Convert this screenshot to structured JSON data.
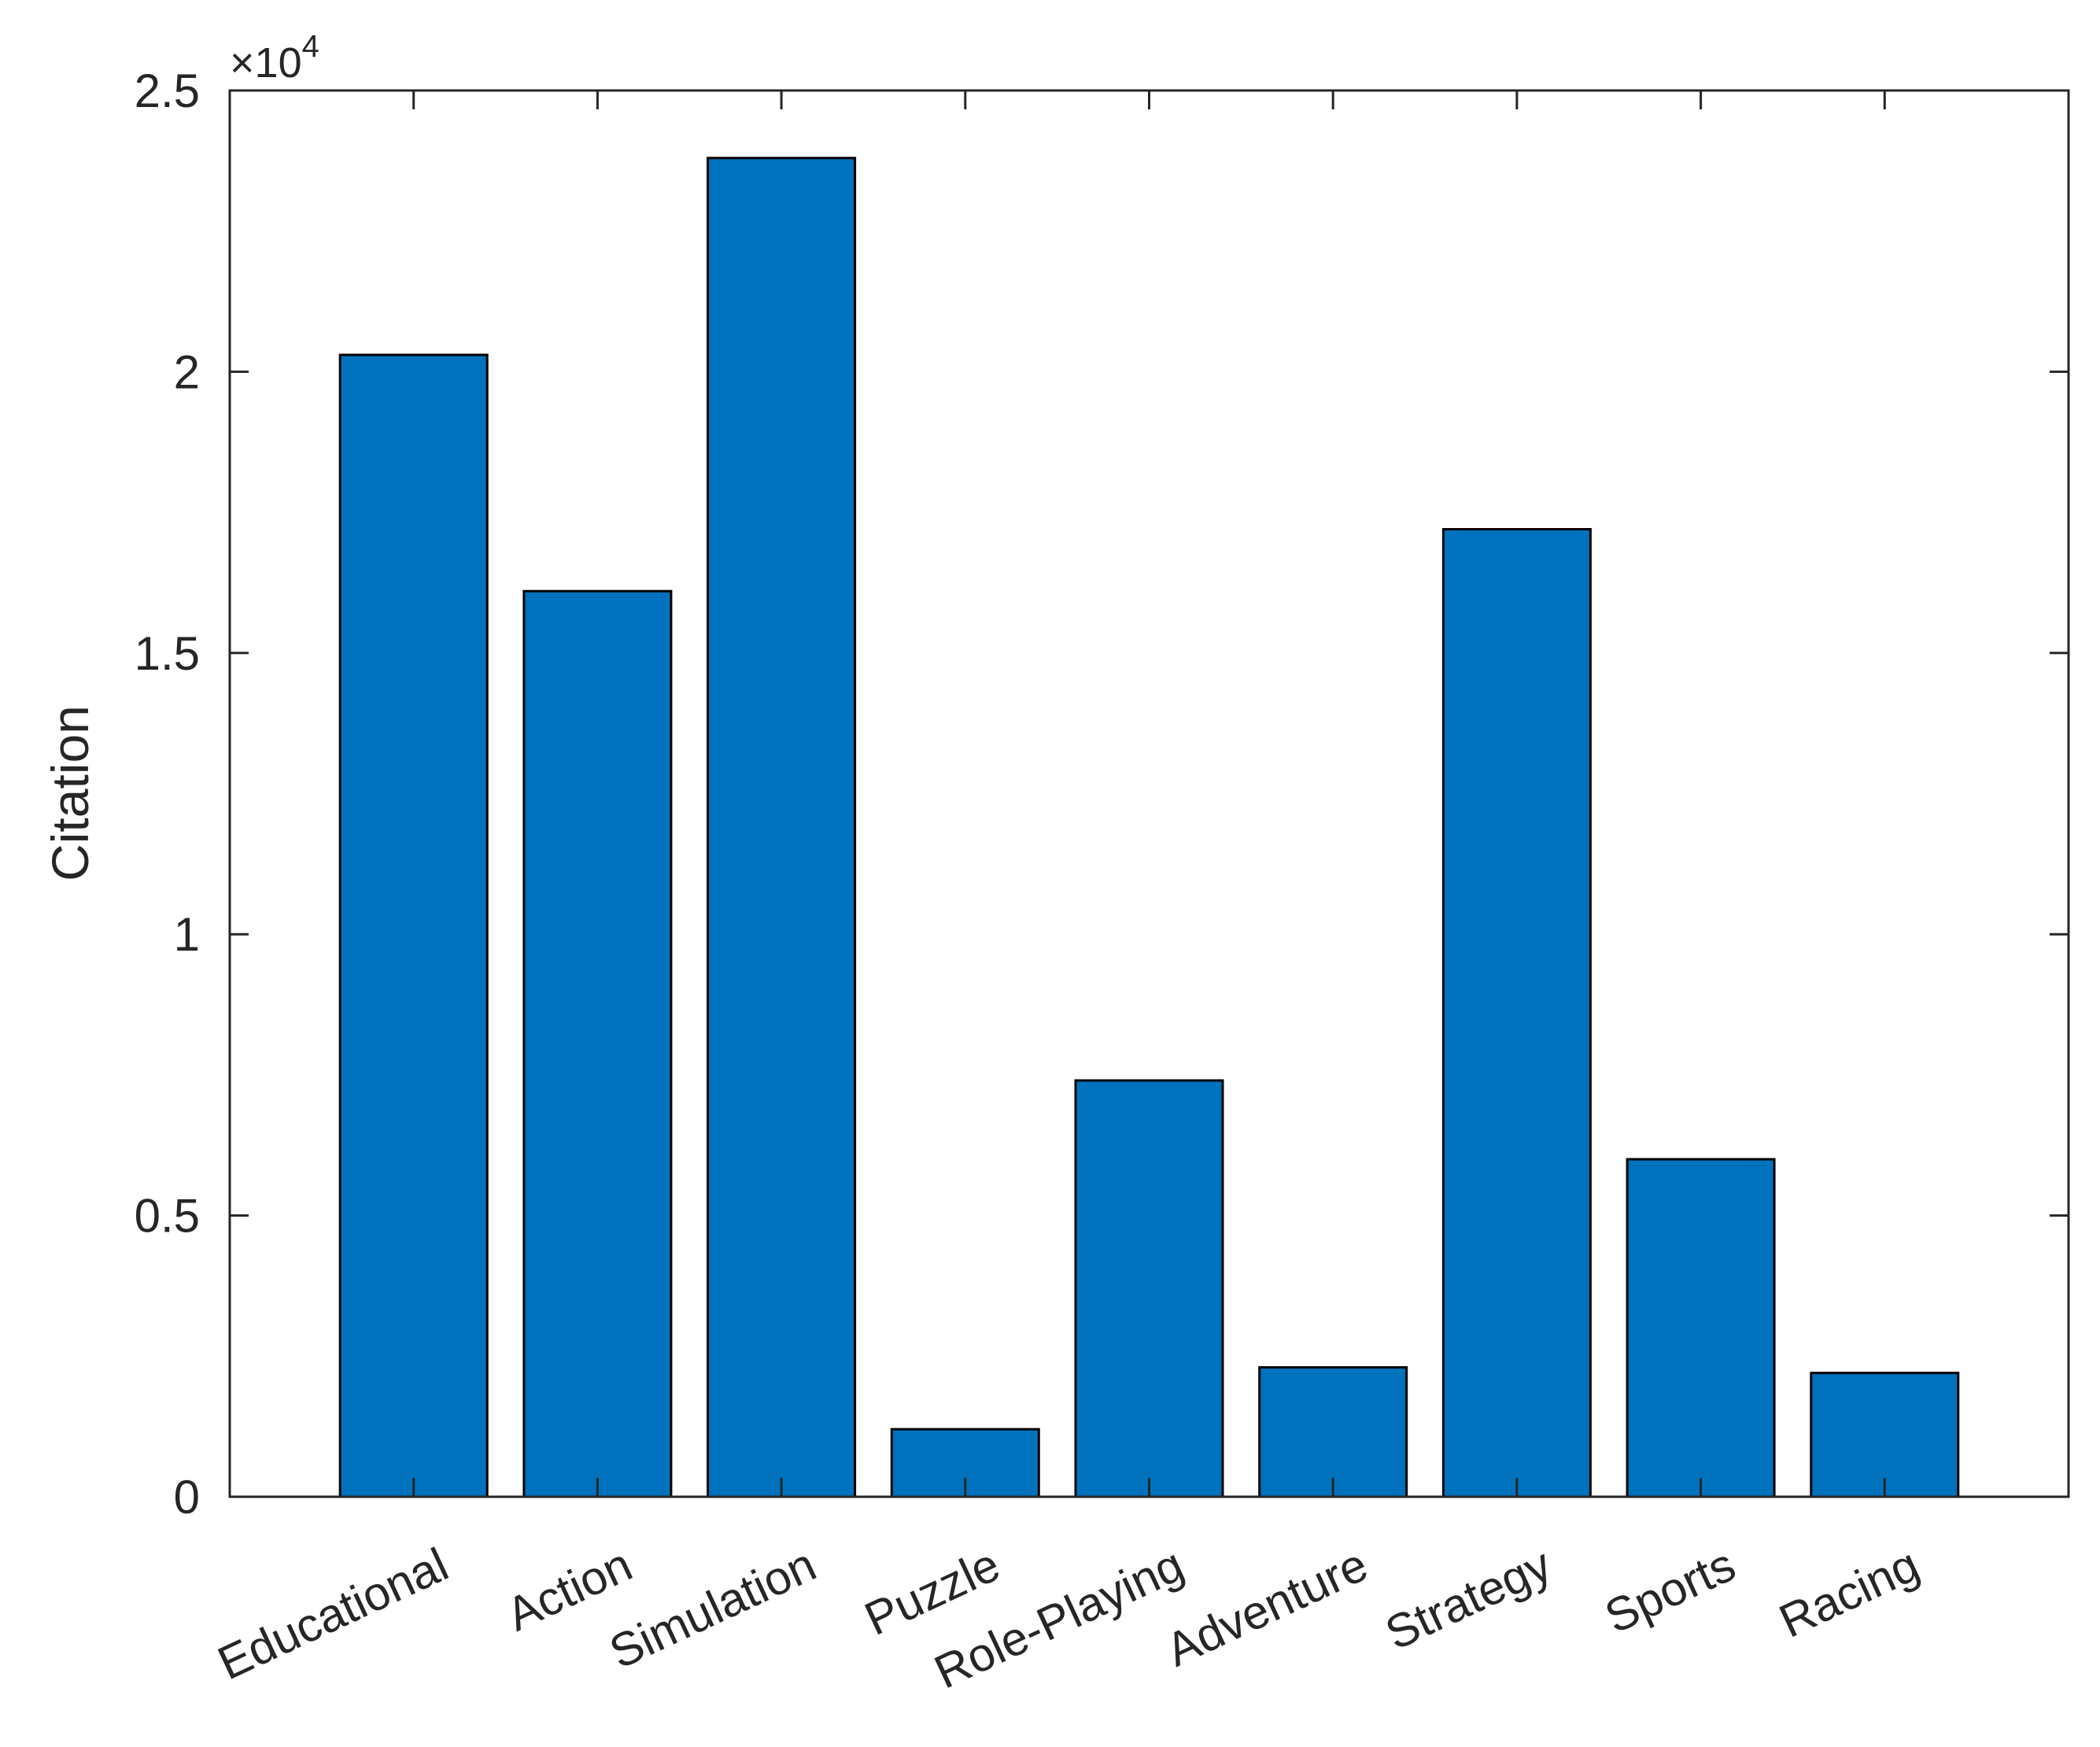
{
  "chart_data": {
    "type": "bar",
    "categories": [
      "Educational",
      "Action",
      "Simulation",
      "Puzzle",
      "Role-Playing",
      "Adventure",
      "Strategy",
      "Sports",
      "Racing"
    ],
    "values": [
      20300,
      16100,
      23800,
      1200,
      7400,
      2300,
      17200,
      6000,
      2200
    ],
    "title": "",
    "xlabel": "",
    "ylabel": "Citation",
    "ylim": [
      0,
      25000
    ],
    "yticks": [
      {
        "value": 0,
        "label": "0"
      },
      {
        "value": 5000,
        "label": "0.5"
      },
      {
        "value": 10000,
        "label": "1"
      },
      {
        "value": 15000,
        "label": "1.5"
      },
      {
        "value": 20000,
        "label": "2"
      },
      {
        "value": 25000,
        "label": "2.5"
      }
    ],
    "exponent": {
      "base": "×10",
      "power": "4"
    },
    "bar_color": "#0072BD",
    "grid": false,
    "legend": "none"
  }
}
